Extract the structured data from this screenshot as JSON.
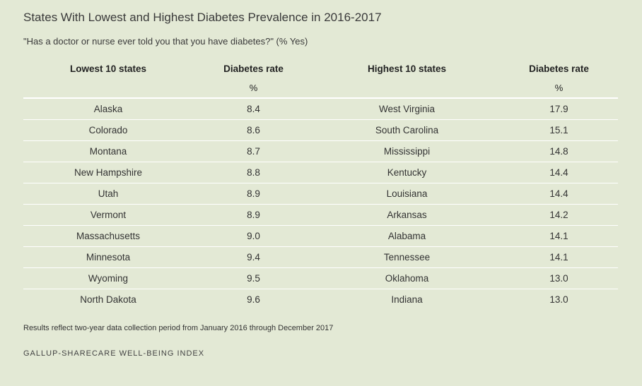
{
  "chart_data": {
    "type": "table",
    "title": "States With Lowest and Highest Diabetes Prevalence in 2016-2017",
    "subtitle": "\"Has a doctor or nurse ever told you that you have diabetes?\" (% Yes)",
    "columns": [
      "Lowest 10 states",
      "Diabetes rate",
      "Highest 10 states",
      "Diabetes rate"
    ],
    "units": [
      "",
      "%",
      "",
      "%"
    ],
    "rows": [
      [
        "Alaska",
        "8.4",
        "West Virginia",
        "17.9"
      ],
      [
        "Colorado",
        "8.6",
        "South Carolina",
        "15.1"
      ],
      [
        "Montana",
        "8.7",
        "Mississippi",
        "14.8"
      ],
      [
        "New Hampshire",
        "8.8",
        "Kentucky",
        "14.4"
      ],
      [
        "Utah",
        "8.9",
        "Louisiana",
        "14.4"
      ],
      [
        "Vermont",
        "8.9",
        "Arkansas",
        "14.2"
      ],
      [
        "Massachusetts",
        "9.0",
        "Alabama",
        "14.1"
      ],
      [
        "Minnesota",
        "9.4",
        "Tennessee",
        "14.1"
      ],
      [
        "Wyoming",
        "9.5",
        "Oklahoma",
        "13.0"
      ],
      [
        "North Dakota",
        "9.6",
        "Indiana",
        "13.0"
      ]
    ],
    "note": "Results reflect two-year data collection period from January 2016 through December 2017",
    "source": "GALLUP-SHARECARE WELL-BEING INDEX"
  },
  "colors": {
    "background": "#e3e9d5",
    "row_divider": "#ffffff",
    "text": "#333333"
  }
}
